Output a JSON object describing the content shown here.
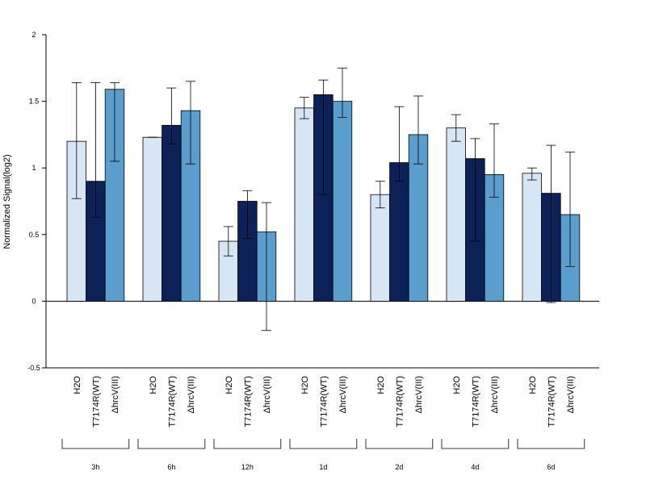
{
  "chart_data": {
    "type": "bar",
    "ylabel": "Normalized Signal(log2)",
    "ylim": [
      -0.5,
      2
    ],
    "yticks": [
      "2",
      "1.5",
      "1",
      "0.5",
      "0",
      "-0.5"
    ],
    "ytick_values": [
      2,
      1.5,
      1,
      0.5,
      0,
      -0.5
    ],
    "series_labels": [
      "H2O",
      "T7174R(WT)",
      "ΔhrcV(III)"
    ],
    "series_colors": [
      "#d6e6f5",
      "#0b2157",
      "#5a9ecd"
    ],
    "groups": [
      {
        "label": "3h",
        "values": [
          1.2,
          0.9,
          1.59
        ],
        "err_low": [
          0.77,
          0.63,
          1.05
        ],
        "err_high": [
          1.64,
          1.64,
          1.64
        ]
      },
      {
        "label": "6h",
        "values": [
          1.23,
          1.32,
          1.43
        ],
        "err_low": [
          1.23,
          1.18,
          1.03
        ],
        "err_high": [
          1.23,
          1.6,
          1.65
        ]
      },
      {
        "label": "12h",
        "values": [
          0.45,
          0.75,
          0.52
        ],
        "err_low": [
          0.34,
          0.47,
          -0.22
        ],
        "err_high": [
          0.56,
          0.83,
          0.74
        ]
      },
      {
        "label": "1d",
        "values": [
          1.45,
          1.55,
          1.5
        ],
        "err_low": [
          1.37,
          0.8,
          1.38
        ],
        "err_high": [
          1.53,
          1.66,
          1.75
        ]
      },
      {
        "label": "2d",
        "values": [
          0.8,
          1.04,
          1.25
        ],
        "err_low": [
          0.7,
          0.9,
          1.03
        ],
        "err_high": [
          0.9,
          1.46,
          1.54
        ]
      },
      {
        "label": "4d",
        "values": [
          1.3,
          1.07,
          0.95
        ],
        "err_low": [
          1.2,
          0.45,
          0.78
        ],
        "err_high": [
          1.4,
          1.22,
          1.33
        ]
      },
      {
        "label": "6d",
        "values": [
          0.96,
          0.81,
          0.65
        ],
        "err_low": [
          0.91,
          -0.01,
          0.26
        ],
        "err_high": [
          1.0,
          1.17,
          1.12
        ]
      }
    ]
  }
}
